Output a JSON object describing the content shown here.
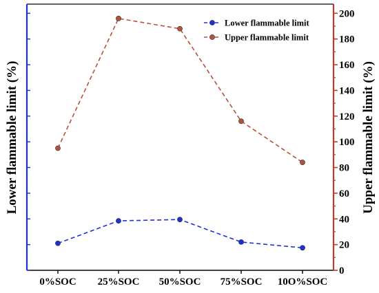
{
  "chart_data": {
    "type": "line",
    "categories": [
      "0%SOC",
      "25%SOC",
      "50%SOC",
      "75%SOC",
      "10O%SOC"
    ],
    "series": [
      {
        "name": "Lower flammable limit",
        "axis": "left",
        "color": "#1f2fd6",
        "values": [
          21,
          38.5,
          39.5,
          22,
          17.5
        ]
      },
      {
        "name": "Upper flammable limit",
        "axis": "right",
        "color": "#b5523b",
        "values": [
          95,
          196,
          188,
          116,
          84
        ]
      }
    ],
    "ylabel": "Lower flammable limit (%)",
    "ylabel_right": "Upper flammable limit (%)",
    "y_right_lim": [
      0,
      205
    ],
    "y_right_ticks": [
      "0",
      "20",
      "40",
      "60",
      "80",
      "100",
      "120",
      "140",
      "160",
      "180",
      "200"
    ],
    "left_axis_color": "#1f2fd6",
    "right_axis_color": "#c0392b",
    "grid": false,
    "legend_position": "top-right",
    "line_style": "dashed"
  }
}
